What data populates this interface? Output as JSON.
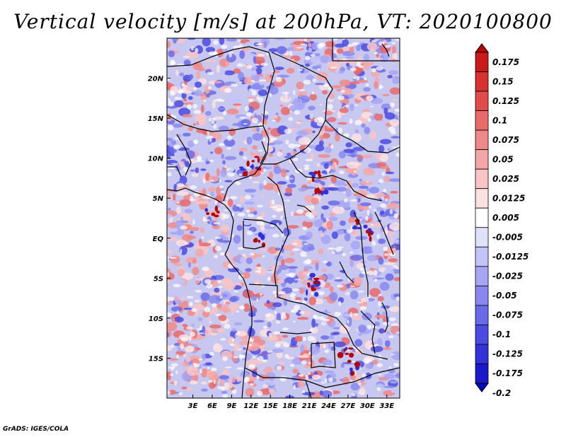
{
  "title": "Vertical velocity [m/s] at 200hPa, VT: 2020100800",
  "footer": "GrADS: IGES/COLA",
  "map": {
    "lon_range": [
      -1,
      35
    ],
    "lat_range": [
      -20,
      25
    ],
    "x_ticks": [
      "3E",
      "6E",
      "9E",
      "12E",
      "15E",
      "18E",
      "21E",
      "24E",
      "27E",
      "30E",
      "33E"
    ],
    "x_tick_values": [
      3,
      6,
      9,
      12,
      15,
      18,
      21,
      24,
      27,
      30,
      33
    ],
    "y_ticks": [
      "20N",
      "15N",
      "10N",
      "5N",
      "EQ",
      "5S",
      "10S",
      "15S"
    ],
    "y_tick_values": [
      20,
      15,
      10,
      5,
      0,
      -5,
      -10,
      -15
    ]
  },
  "colorbar": {
    "labels": [
      "0.175",
      "0.15",
      "0.125",
      "0.1",
      "0.075",
      "0.05",
      "0.025",
      "0.0125",
      "0.005",
      "-0.005",
      "-0.0125",
      "-0.025",
      "-0.05",
      "-0.075",
      "-0.1",
      "-0.125",
      "-0.175",
      "-0.2"
    ],
    "colors": [
      "#b40000",
      "#c81a1a",
      "#d73232",
      "#e14b4b",
      "#e86a6a",
      "#ef8888",
      "#f4a6a6",
      "#f8c4c4",
      "#fbe1e1",
      "#ffffff",
      "#e1e1fb",
      "#c4c4f8",
      "#a6a6f4",
      "#8888ef",
      "#6a6ae8",
      "#4b4be1",
      "#3232d7",
      "#1a1ac8",
      "#0a0ab4"
    ]
  }
}
